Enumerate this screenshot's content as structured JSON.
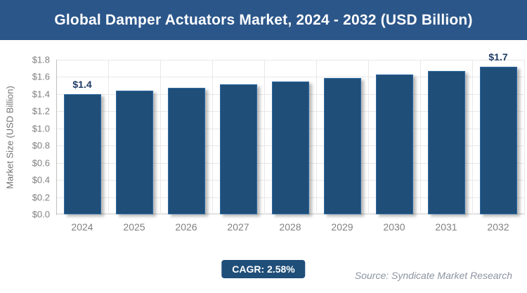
{
  "header": {
    "title": "Global Damper Actuators Market, 2024 - 2032 (USD Billion)"
  },
  "footer": {
    "cagr_label": "CAGR: 2.58%",
    "source_label": "Source: Syndicate Market Research"
  },
  "colors": {
    "header_bg": "#2B568A",
    "bar_fill": "#1F4E79",
    "bar_edge": "#2E6BA3",
    "badge_bg": "#1F4E79",
    "data_label_text": "#1F3B66",
    "axis_text": "#808080",
    "gridline": "#E8E8E8",
    "axis_line": "#BFBFBF",
    "source_text": "#8B95A0"
  },
  "chart_data": {
    "type": "bar",
    "title": "Global Damper Actuators Market, 2024 - 2032 (USD Billion)",
    "categories": [
      "2024",
      "2025",
      "2026",
      "2027",
      "2028",
      "2029",
      "2030",
      "2031",
      "2032"
    ],
    "values": [
      1.4,
      1.44,
      1.47,
      1.51,
      1.55,
      1.59,
      1.63,
      1.67,
      1.72
    ],
    "point_labels": [
      "$1.4",
      "",
      "",
      "",
      "",
      "",
      "",
      "",
      "$1.7"
    ],
    "xlabel": "",
    "ylabel": "Market Size (USD Billion)",
    "ylim": [
      0,
      1.8
    ],
    "ytick_step": 0.2,
    "ytick_labels": [
      "$0.0",
      "$0.2",
      "$0.4",
      "$0.6",
      "$0.8",
      "$1.0",
      "$1.2",
      "$1.4",
      "$1.6",
      "$1.8"
    ],
    "grid": true,
    "legend": false,
    "cagr": "2.58%"
  }
}
